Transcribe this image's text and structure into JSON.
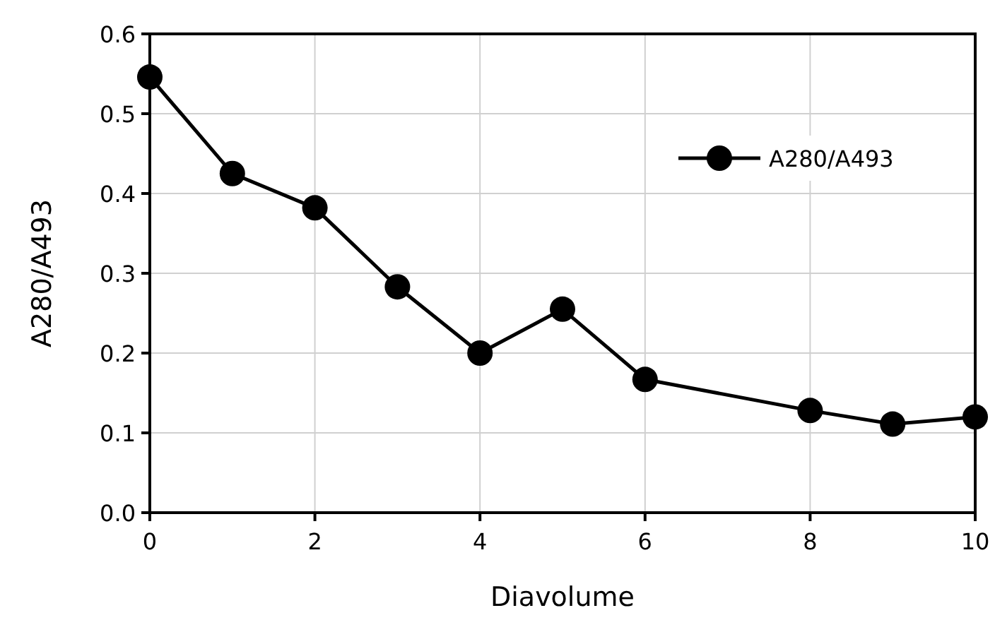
{
  "chart_data": {
    "type": "line",
    "xlabel": "Diavolume",
    "ylabel": "A280/A493",
    "x": [
      0,
      1,
      2,
      3,
      4,
      5,
      6,
      8,
      9,
      10
    ],
    "series": [
      {
        "name": "A280/A493",
        "color": "#000000",
        "values": [
          0.546,
          0.425,
          0.382,
          0.283,
          0.2,
          0.255,
          0.167,
          0.128,
          0.111,
          0.12
        ]
      }
    ],
    "xlim": [
      0,
      10
    ],
    "xticks": [
      0,
      2,
      4,
      6,
      8,
      10
    ],
    "ylim": [
      0,
      0.6
    ],
    "yticks": [
      {
        "value": 0,
        "label": "0.0"
      },
      0.1,
      0.2,
      0.3,
      0.4,
      0.5,
      0.6
    ],
    "grid": true,
    "legend": "top right",
    "marker": "circle",
    "line_style": "solid"
  }
}
